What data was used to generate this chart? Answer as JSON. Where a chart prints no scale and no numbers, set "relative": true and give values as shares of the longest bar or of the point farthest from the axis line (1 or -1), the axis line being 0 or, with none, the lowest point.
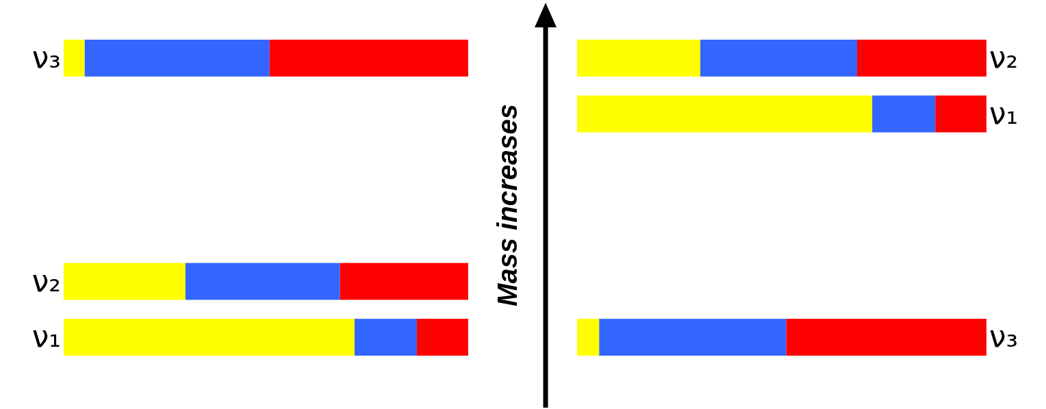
{
  "chart_data": [
    {
      "type": "bar",
      "orientation": "horizontal",
      "stacked": true,
      "relative": true,
      "categories": [
        "ν₃",
        null,
        null,
        null,
        "ν₂",
        "ν₁"
      ],
      "series": [
        {
          "color": "#ffff00",
          "values": [
            0.052,
            null,
            null,
            null,
            0.301,
            0.719
          ]
        },
        {
          "color": "#3366ff",
          "values": [
            0.457,
            null,
            null,
            null,
            0.382,
            0.154
          ]
        },
        {
          "color": "#ff0000",
          "values": [
            0.491,
            null,
            null,
            null,
            0.317,
            0.127
          ]
        }
      ],
      "annotations": [
        "Mass increases"
      ]
    },
    {
      "type": "bar",
      "orientation": "horizontal",
      "stacked": true,
      "relative": true,
      "categories": [
        "ν₂",
        "ν₁",
        null,
        null,
        null,
        "ν₃"
      ],
      "series": [
        {
          "color": "#ffff00",
          "values": [
            0.301,
            0.721,
            null,
            null,
            null,
            0.054
          ]
        },
        {
          "color": "#3366ff",
          "values": [
            0.383,
            0.154,
            null,
            null,
            null,
            0.457
          ]
        },
        {
          "color": "#ff0000",
          "values": [
            0.316,
            0.125,
            null,
            null,
            null,
            0.489
          ]
        }
      ]
    }
  ]
}
